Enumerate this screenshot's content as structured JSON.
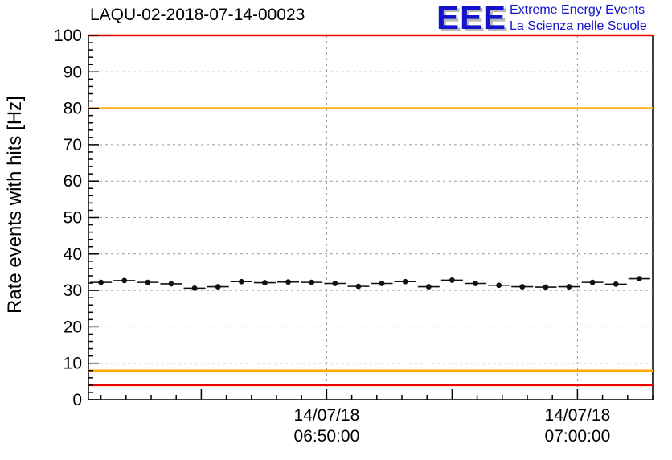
{
  "header": {
    "title": "LAQU-02-2018-07-14-00023",
    "logo_text": "EEE",
    "tagline_line1": "Extreme Energy Events",
    "tagline_line2": "La Scienza nelle Scuole"
  },
  "colors": {
    "logo_blue": "#1414cf",
    "threshold_red": "#ee0000",
    "threshold_orange": "#ffaa00",
    "marker_black": "#111111",
    "grid_gray": "#999999"
  },
  "chart_data": {
    "type": "scatter",
    "title": "LAQU-02-2018-07-14-00023",
    "xlabel": "",
    "ylabel": "Rate events with hits [Hz]",
    "ylim": [
      0,
      100
    ],
    "y_ticks": [
      0,
      10,
      20,
      30,
      40,
      50,
      60,
      70,
      80,
      90,
      100
    ],
    "grid": true,
    "legend": "none",
    "x_axis": {
      "range": [
        "06:40:30",
        "07:03:00"
      ],
      "minor_tick_seconds": 60,
      "major_tick_seconds": 300
    },
    "x_tick_labels": [
      {
        "date": "14/07/18",
        "time": "06:50:00"
      },
      {
        "date": "14/07/18",
        "time": "07:00:00"
      }
    ],
    "threshold_lines": [
      {
        "value": 100,
        "color": "#ee0000"
      },
      {
        "value": 80,
        "color": "#ffaa00"
      },
      {
        "value": 8,
        "color": "#ffaa00"
      },
      {
        "value": 4,
        "color": "#ee0000"
      }
    ],
    "x_error_seconds": 26,
    "y_error": 0.4,
    "points": [
      {
        "time": "06:41:00",
        "value": 32.2
      },
      {
        "time": "06:41:56",
        "value": 32.7
      },
      {
        "time": "06:42:52",
        "value": 32.2
      },
      {
        "time": "06:43:48",
        "value": 31.8
      },
      {
        "time": "06:44:44",
        "value": 30.6
      },
      {
        "time": "06:45:40",
        "value": 31.0
      },
      {
        "time": "06:46:36",
        "value": 32.4
      },
      {
        "time": "06:47:32",
        "value": 32.1
      },
      {
        "time": "06:48:28",
        "value": 32.3
      },
      {
        "time": "06:49:24",
        "value": 32.2
      },
      {
        "time": "06:50:20",
        "value": 31.9
      },
      {
        "time": "06:51:16",
        "value": 31.1
      },
      {
        "time": "06:52:12",
        "value": 31.9
      },
      {
        "time": "06:53:08",
        "value": 32.4
      },
      {
        "time": "06:54:04",
        "value": 31.0
      },
      {
        "time": "06:55:00",
        "value": 32.8
      },
      {
        "time": "06:55:56",
        "value": 31.9
      },
      {
        "time": "06:56:52",
        "value": 31.4
      },
      {
        "time": "06:57:48",
        "value": 31.0
      },
      {
        "time": "06:58:44",
        "value": 30.9
      },
      {
        "time": "06:59:40",
        "value": 31.0
      },
      {
        "time": "07:00:36",
        "value": 32.2
      },
      {
        "time": "07:01:32",
        "value": 31.7
      },
      {
        "time": "07:02:28",
        "value": 33.2
      }
    ]
  }
}
